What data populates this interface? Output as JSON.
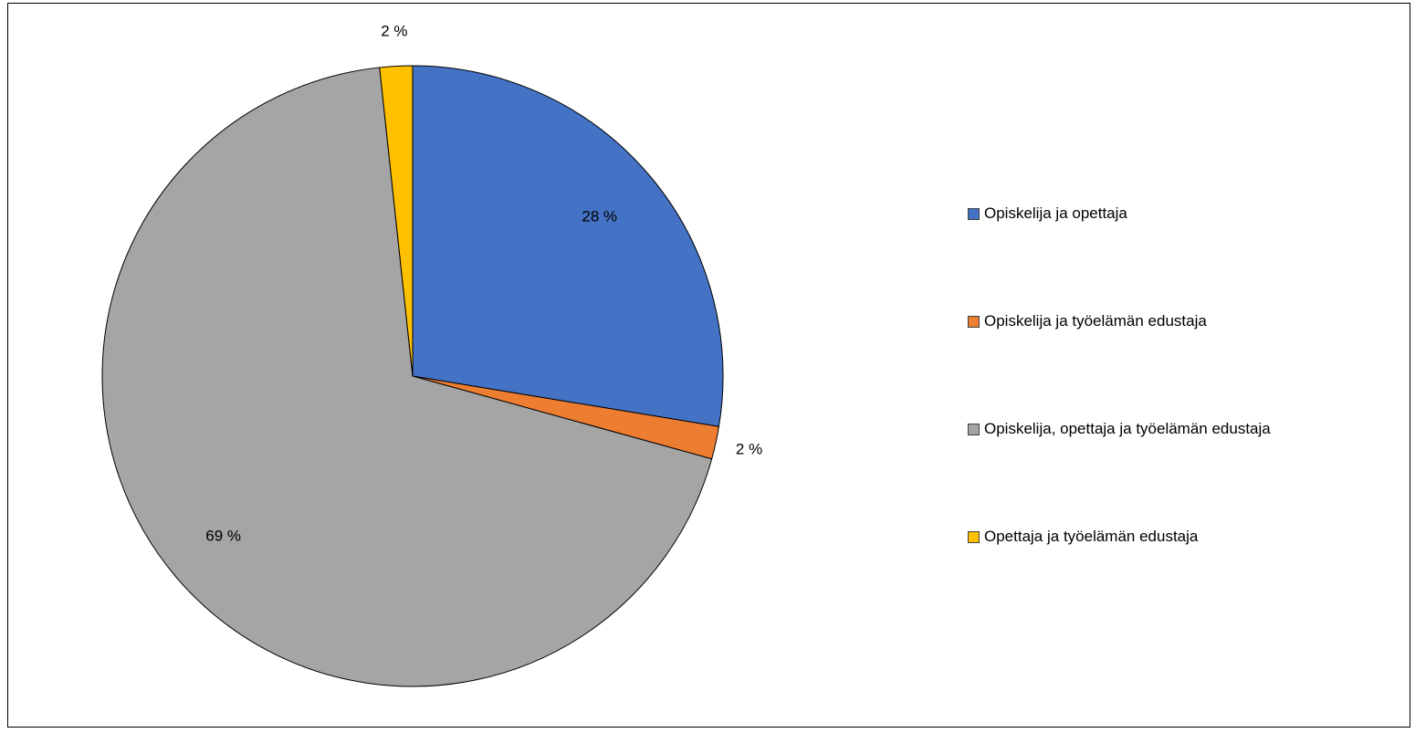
{
  "chart_data": {
    "type": "pie",
    "categories": [
      "Opiskelija ja opettaja",
      "Opiskelija ja työelämän edustaja",
      "Opiskelija, opettaja ja työelämän edustaja",
      "Opettaja ja työelämän edustaja"
    ],
    "values": [
      27.6,
      1.7,
      69.0,
      1.7
    ],
    "data_labels": [
      "28 %",
      "2 %",
      "69 %",
      "2 %"
    ],
    "colors": [
      "#4472C4",
      "#ED7D31",
      "#A5A5A5",
      "#FFC000"
    ],
    "start_angle": "12 o'clock",
    "direction": "clockwise",
    "legend_position": "right",
    "title": ""
  }
}
